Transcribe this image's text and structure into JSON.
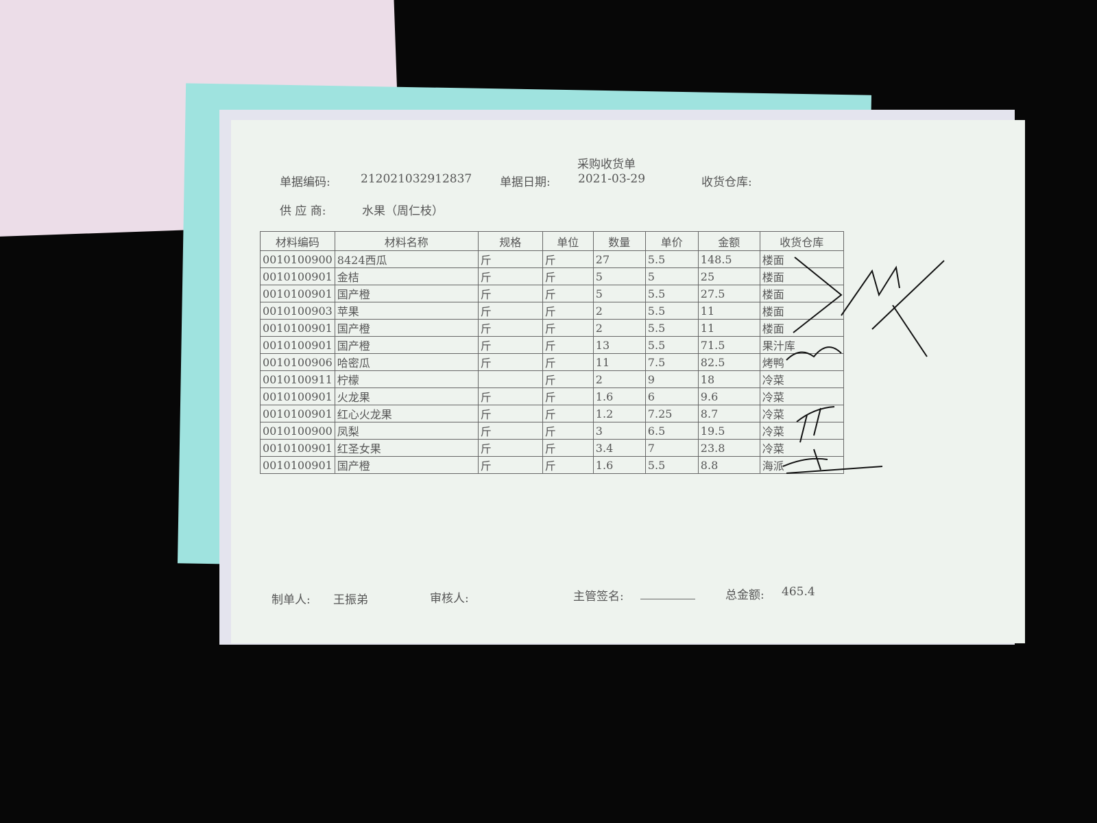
{
  "header": {
    "title": "采购收货单",
    "doc_no_label": "单据编码:",
    "doc_no": "212021032912837",
    "date_label": "单据日期:",
    "date": "2021-03-29",
    "warehouse_label": "收货仓库:",
    "supplier_label": "供 应 商:",
    "supplier": "水果（周仁枝）"
  },
  "table": {
    "columns": [
      "材料编码",
      "材料名称",
      "规格",
      "单位",
      "数量",
      "单价",
      "金额",
      "收货仓库"
    ],
    "rows": [
      [
        "0010100900",
        "8424西瓜",
        "斤",
        "斤",
        "27",
        "5.5",
        "148.5",
        "楼面"
      ],
      [
        "0010100901",
        "金桔",
        "斤",
        "斤",
        "5",
        "5",
        "25",
        "楼面"
      ],
      [
        "0010100901",
        "国产橙",
        "斤",
        "斤",
        "5",
        "5.5",
        "27.5",
        "楼面"
      ],
      [
        "0010100903",
        "苹果",
        "斤",
        "斤",
        "2",
        "5.5",
        "11",
        "楼面"
      ],
      [
        "0010100901",
        "国产橙",
        "斤",
        "斤",
        "2",
        "5.5",
        "11",
        "楼面"
      ],
      [
        "0010100901",
        "国产橙",
        "斤",
        "斤",
        "13",
        "5.5",
        "71.5",
        "果汁库"
      ],
      [
        "0010100906",
        "哈密瓜",
        "斤",
        "斤",
        "11",
        "7.5",
        "82.5",
        "烤鸭"
      ],
      [
        "0010100911",
        "柠檬",
        null,
        "斤",
        "2",
        "9",
        "18",
        "冷菜"
      ],
      [
        "0010100901",
        "火龙果",
        "斤",
        "斤",
        "1.6",
        "6",
        "9.6",
        "冷菜"
      ],
      [
        "0010100901",
        "红心火龙果",
        "斤",
        "斤",
        "1.2",
        "7.25",
        "8.7",
        "冷菜"
      ],
      [
        "0010100900",
        "凤梨",
        "斤",
        "斤",
        "3",
        "6.5",
        "19.5",
        "冷菜"
      ],
      [
        "0010100901",
        "红圣女果",
        "斤",
        "斤",
        "3.4",
        "7",
        "23.8",
        "冷菜"
      ],
      [
        "0010100901",
        "国产橙",
        "斤",
        "斤",
        "1.6",
        "5.5",
        "8.8",
        "海派"
      ]
    ]
  },
  "footer": {
    "maker_label": "制单人:",
    "maker": "王振弟",
    "reviewer_label": "审核人:",
    "manager_label": "主管签名:",
    "total_label": "总金额:",
    "total": "465.4"
  }
}
